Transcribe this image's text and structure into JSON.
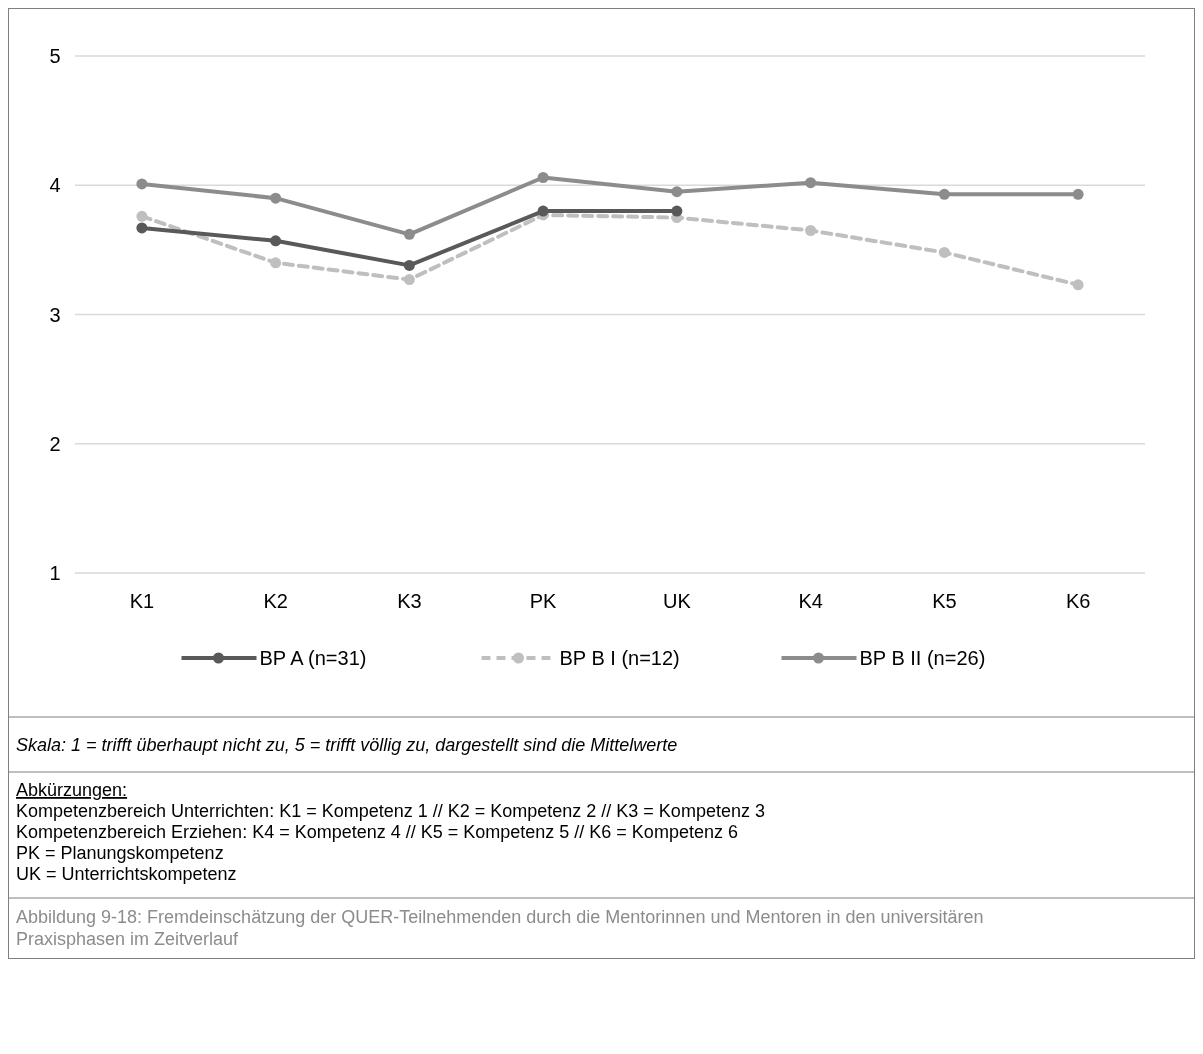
{
  "chart_data": {
    "type": "line",
    "categories": [
      "K1",
      "K2",
      "K3",
      "PK",
      "UK",
      "K4",
      "K5",
      "K6"
    ],
    "series": [
      {
        "name": "BP A (n=31)",
        "color": "#595959",
        "line_style": "solid",
        "values": [
          3.67,
          3.57,
          3.38,
          3.8,
          3.8,
          null,
          null,
          null
        ]
      },
      {
        "name": "BP B I (n=12)",
        "color": "#bfbfbf",
        "line_style": "dashed",
        "values": [
          3.76,
          3.4,
          3.27,
          3.77,
          3.75,
          3.65,
          3.48,
          3.23
        ]
      },
      {
        "name": "BP B II (n=26)",
        "color": "#8c8c8c",
        "line_style": "solid",
        "values": [
          4.01,
          3.9,
          3.62,
          4.06,
          3.95,
          4.02,
          3.93,
          3.93
        ]
      }
    ],
    "ylim": [
      1,
      5
    ],
    "yticks": [
      1,
      2,
      3,
      4,
      5
    ],
    "grid": "y",
    "legend": "bottom",
    "marker": "circle",
    "annotations": [
      "Skala: 1 = trifft überhaupt nicht zu, 5 = trifft völlig zu, dargestellt sind die Mittelwerte",
      "Abkürzungen:",
      "Kompetenzbereich Unterrichten: K1 = Kompetenz 1 // K2 = Kompetenz 2 // K3 = Kompetenz 3",
      "Kompetenzbereich Erziehen: K4 = Kompetenz 4 // K5 = Kompetenz 5 // K6 = Kompetenz 6",
      "PK = Planungskompetenz",
      "UK = Unterrichtskompetenz",
      "Abbildung 9-18: Fremdeinschätzung der QUER-Teilnehmenden durch die Mentorinnen und Mentoren in den universitären Praxisphasen im Zeitverlauf"
    ]
  }
}
